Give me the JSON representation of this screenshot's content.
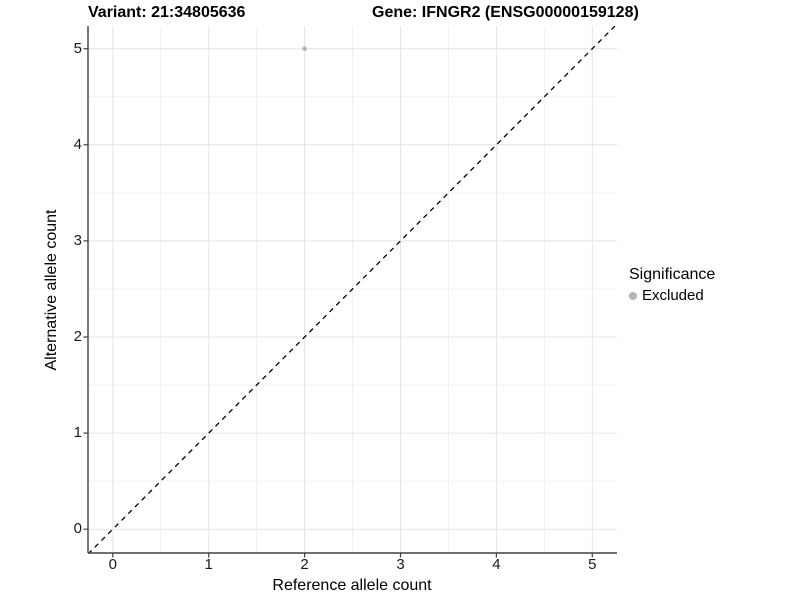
{
  "header": {
    "variant_title": "Variant: 21:34805636",
    "gene_title": "Gene: IFNGR2 (ENSG00000159128)"
  },
  "axes": {
    "x_label": "Reference allele count",
    "y_label": "Alternative allele count"
  },
  "legend": {
    "title": "Significance",
    "items": [
      {
        "label": "Excluded",
        "color": "#b4b4b4"
      }
    ]
  },
  "colors": {
    "grid_major": "#e4e4e4",
    "grid_minor": "#f0f0f0",
    "axis_line": "#404040",
    "reference_line": "#000000",
    "point": "#b4b4b4",
    "text": "#000000"
  },
  "chart_data": {
    "type": "scatter",
    "title": "Variant: 21:34805636   Gene: IFNGR2 (ENSG00000159128)",
    "xlabel": "Reference allele count",
    "ylabel": "Alternative allele count",
    "x_ticks": [
      0,
      1,
      2,
      3,
      4,
      5
    ],
    "y_ticks": [
      0,
      1,
      2,
      3,
      4,
      5
    ],
    "xlim": [
      -0.26,
      5.26
    ],
    "ylim": [
      -0.25,
      5.24
    ],
    "grid": "major+minor",
    "legend_position": "right",
    "reference_line": {
      "type": "identity y=x",
      "style": "dashed",
      "color": "#000000"
    },
    "series": [
      {
        "name": "Excluded",
        "color": "#b4b4b4",
        "points": [
          {
            "x": 2,
            "y": 5
          }
        ]
      }
    ]
  }
}
